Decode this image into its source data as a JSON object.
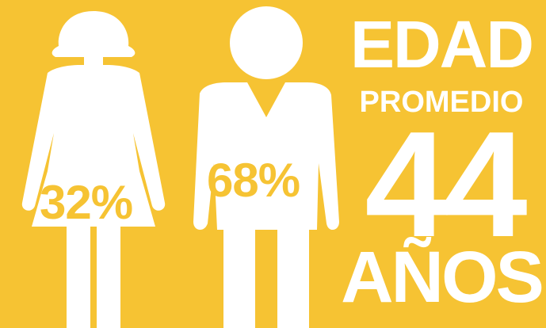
{
  "palette": {
    "background": "#f6c333",
    "foreground": "#ffffff"
  },
  "figures": {
    "female": {
      "icon": "female-figure-icon",
      "percent_label": "32%",
      "percent_value": 32
    },
    "male": {
      "icon": "male-figure-icon",
      "percent_label": "68%",
      "percent_value": 68
    }
  },
  "headline": {
    "line1": "EDAD",
    "line2": "PROMEDIO",
    "number": "44",
    "line3": "AÑOS"
  }
}
